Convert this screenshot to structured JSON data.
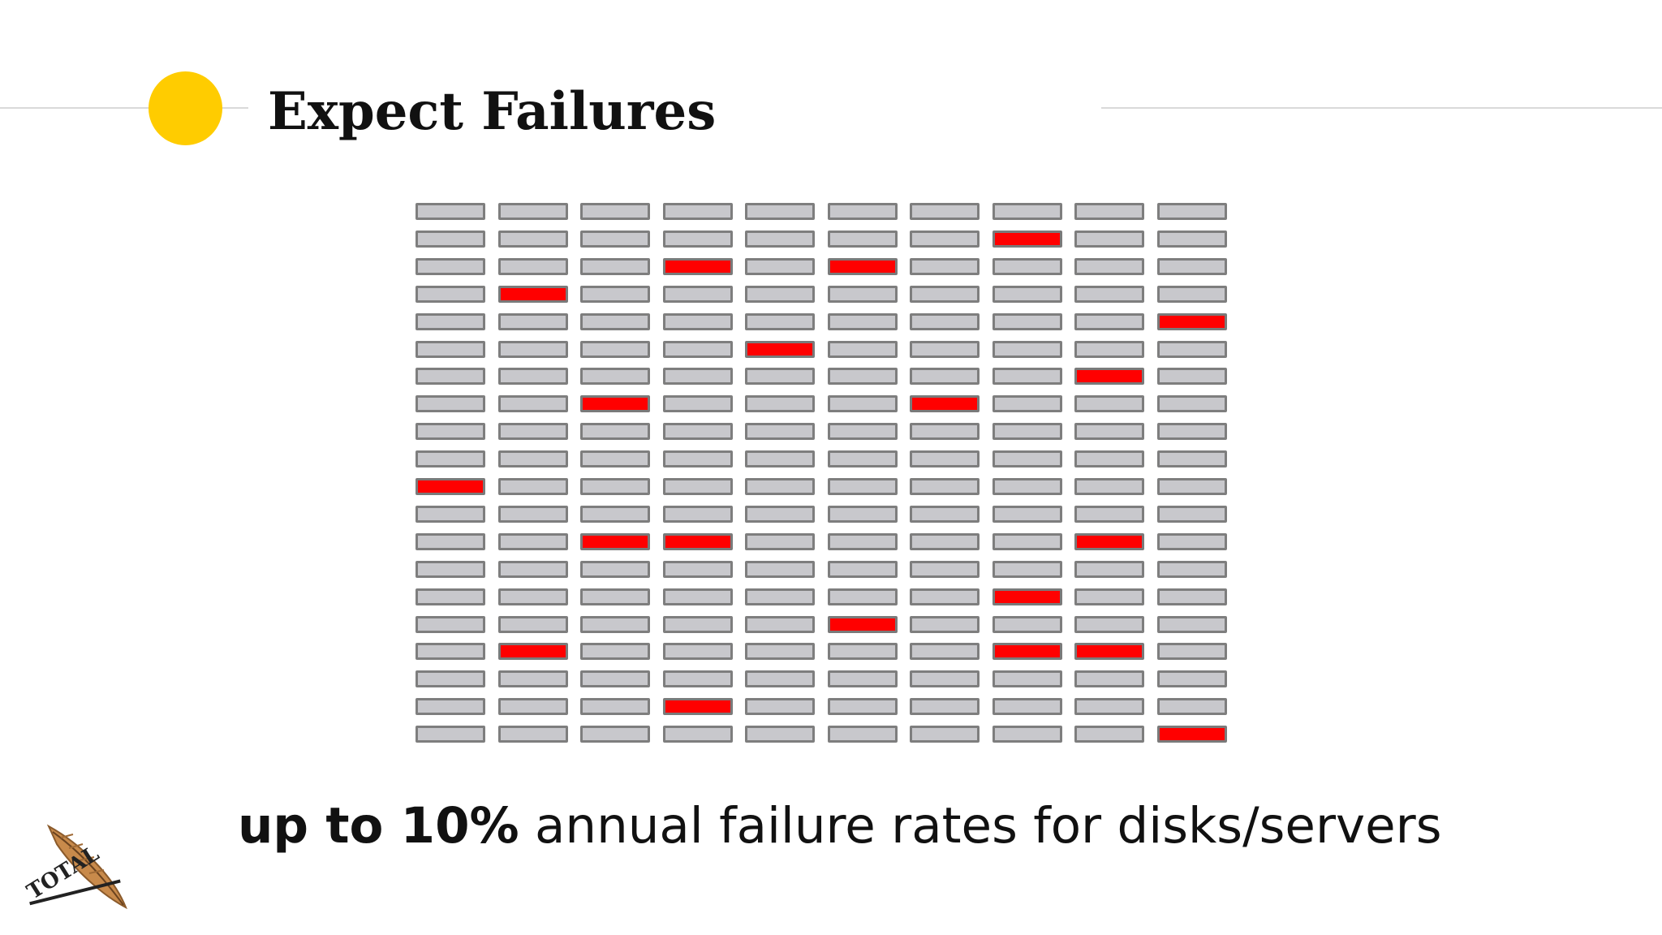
{
  "slide": {
    "title": "Expect Failures",
    "caption_strong": "up to 10%",
    "caption_rest": " annual failure rates for disks/servers",
    "logo_text": "TOTAL"
  },
  "colors": {
    "accent_circle": "#ffcc00",
    "disk_ok": "#c8c8cc",
    "disk_failed": "#ff0000",
    "disk_border": "#7e7e7e"
  },
  "disk_grid": {
    "columns": 10,
    "rows": 20,
    "failed": [
      [
        7,
        1
      ],
      [
        3,
        2
      ],
      [
        5,
        2
      ],
      [
        1,
        3
      ],
      [
        9,
        4
      ],
      [
        4,
        5
      ],
      [
        8,
        6
      ],
      [
        2,
        7
      ],
      [
        6,
        7
      ],
      [
        0,
        10
      ],
      [
        2,
        12
      ],
      [
        3,
        12
      ],
      [
        8,
        12
      ],
      [
        7,
        14
      ],
      [
        5,
        15
      ],
      [
        1,
        16
      ],
      [
        7,
        16
      ],
      [
        8,
        16
      ],
      [
        3,
        18
      ],
      [
        9,
        19
      ]
    ]
  }
}
